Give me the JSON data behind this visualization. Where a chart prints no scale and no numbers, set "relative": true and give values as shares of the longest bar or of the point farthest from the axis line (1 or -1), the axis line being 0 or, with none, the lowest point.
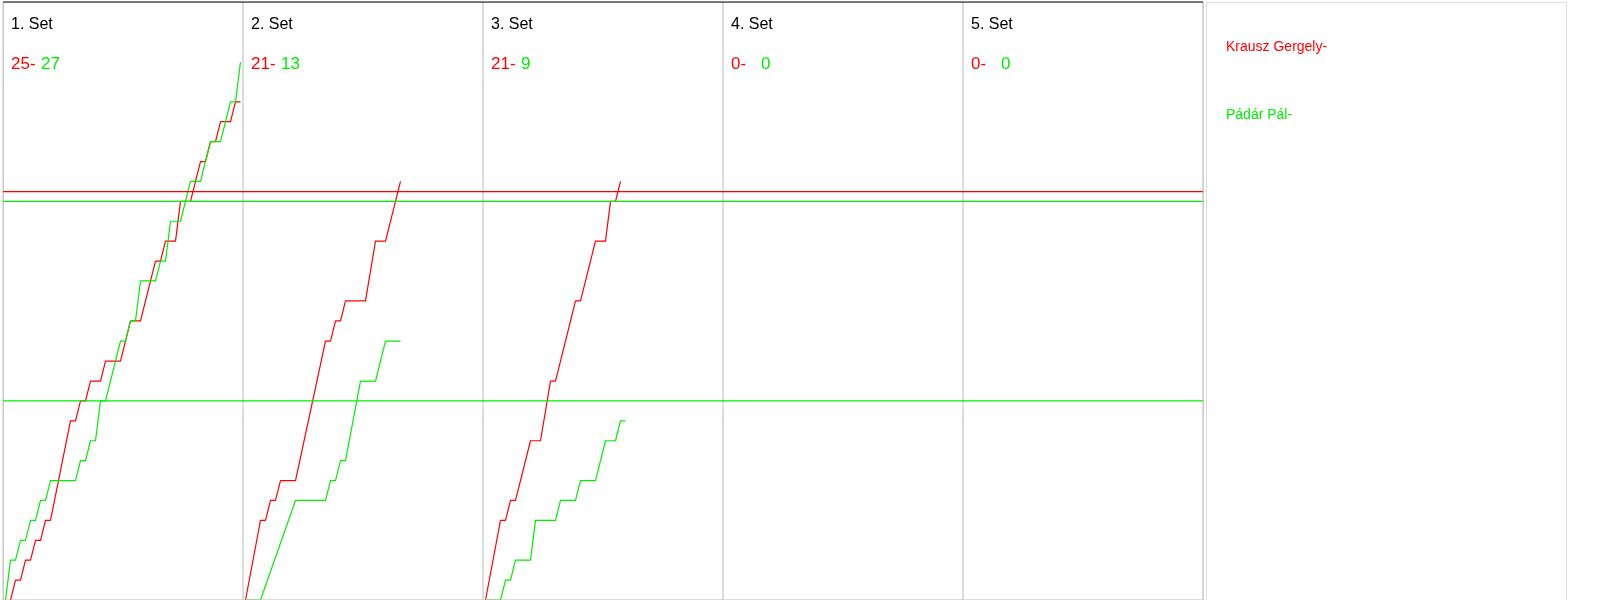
{
  "chart_data": {
    "type": "line",
    "relative": true,
    "annotations": [
      "1. Set",
      "25-",
      "27",
      "2. Set",
      "21-",
      "13",
      "3. Set",
      "21-",
      "9",
      "4. Set",
      "0-",
      "0",
      "5. Set",
      "0-",
      "0"
    ],
    "categories": [
      null,
      null,
      null,
      null,
      null,
      null,
      null,
      null,
      null,
      null,
      null,
      null,
      null,
      null,
      null,
      null,
      null,
      null,
      null,
      null,
      null,
      null,
      null,
      null,
      null,
      null,
      null,
      null,
      null,
      null,
      null,
      null,
      null,
      null,
      null,
      null,
      null,
      null,
      null,
      null,
      null,
      null,
      null,
      null,
      null,
      null,
      null,
      null,
      null,
      null,
      null,
      null,
      null,
      null,
      null,
      null,
      null,
      null,
      null,
      null,
      null,
      null,
      null,
      null,
      null,
      null,
      null,
      null,
      null,
      null,
      null,
      null,
      null,
      null,
      null,
      null,
      null,
      null,
      null,
      null,
      null,
      null,
      null,
      null,
      null,
      null,
      null,
      null,
      null,
      null,
      null,
      null,
      null,
      null,
      null,
      null,
      null,
      null,
      null,
      null,
      null,
      null,
      null,
      null,
      null,
      null,
      null,
      null,
      null,
      null,
      null,
      null,
      null,
      null,
      null,
      null,
      null,
      null,
      null,
      null,
      null,
      null,
      null,
      null,
      null,
      null,
      null,
      null,
      null,
      null,
      null,
      null,
      null,
      null,
      null,
      null,
      null,
      null,
      null,
      null,
      null,
      null,
      null,
      null,
      null,
      null,
      null,
      null,
      null,
      null,
      null,
      null,
      null,
      null,
      null,
      null,
      null,
      null,
      null,
      null,
      null,
      null,
      null,
      null,
      null,
      null,
      null,
      null,
      null,
      null,
      null,
      null,
      null,
      null,
      null,
      null,
      null,
      null,
      null,
      null,
      null,
      null,
      null,
      null,
      null,
      null,
      null,
      null,
      null,
      null,
      null,
      null,
      null,
      null,
      null,
      null,
      null,
      null,
      null,
      null,
      null,
      null,
      null,
      null,
      null,
      null,
      null,
      null,
      null,
      null,
      null,
      null,
      null,
      null,
      null,
      null,
      null,
      null,
      null,
      null,
      null,
      null,
      null,
      null,
      null,
      null,
      null,
      null,
      null,
      null,
      null,
      null,
      null,
      null,
      null,
      null,
      null,
      null,
      null,
      null
    ],
    "series": [
      {
        "name": "Krausz Gergely-",
        "color": "#ff0000",
        "values": [
          null,
          0,
          0.037,
          0.037,
          0.074,
          0.074,
          0.111,
          0.111,
          0.148,
          0.148,
          null,
          null,
          null,
          0.333,
          0.333,
          0.37,
          0.37,
          0.407,
          null,
          0.407,
          0.444,
          null,
          null,
          0.444,
          0.481,
          0.519,
          null,
          0.519,
          null,
          null,
          0.63,
          0.63,
          0.667,
          null,
          0.667,
          0.741,
          null,
          0.741,
          null,
          0.815,
          0.815,
          0.852,
          0.852,
          0.889,
          null,
          0.889,
          0.926,
          0.926,
          null,
          null,
          null,
          null,
          null,
          null,
          null,
          null,
          null,
          null,
          null,
          null,
          null,
          null,
          null,
          null,
          null,
          null,
          null,
          null,
          null,
          null,
          null,
          null,
          null,
          null,
          null,
          null,
          null,
          null,
          null,
          null,
          null,
          null,
          null,
          null,
          null,
          null,
          null,
          null,
          null,
          null,
          null,
          null,
          null,
          null,
          null,
          null,
          null,
          null,
          null,
          null,
          null,
          null,
          null,
          null,
          null,
          null,
          null,
          null,
          null,
          null,
          null,
          null,
          null,
          null,
          null,
          null,
          null,
          null,
          null,
          null,
          null,
          null,
          null,
          null,
          null,
          null,
          null,
          null,
          null,
          null,
          null,
          null,
          null,
          null,
          null,
          null,
          null,
          null,
          null,
          null,
          null,
          null,
          null,
          null,
          null,
          null,
          null,
          null,
          null,
          null,
          null,
          null,
          null,
          null,
          null,
          null,
          null,
          null,
          null,
          null,
          null,
          null,
          null,
          null,
          null,
          null,
          null,
          null,
          null,
          null,
          null,
          null,
          null,
          null,
          null,
          null,
          null,
          null,
          null,
          null,
          null,
          null,
          null,
          null,
          null,
          null,
          null,
          null,
          null,
          null,
          null,
          null,
          null,
          null,
          null,
          null,
          null,
          null,
          null,
          null,
          null,
          null,
          null,
          null,
          null,
          null,
          null,
          null,
          null,
          null,
          null,
          null,
          null,
          null,
          null,
          null,
          null,
          null,
          null,
          null,
          null,
          null,
          null,
          null,
          null,
          null,
          null,
          null,
          null,
          null,
          null,
          null,
          null,
          null,
          null,
          null,
          null,
          null,
          null,
          null
        ]
      },
      {
        "name": "Pádár Pál-",
        "color": "#00ee00",
        "values": [
          0,
          0.074,
          0.074,
          0.111,
          0.111,
          0.148,
          0.148,
          0.185,
          0.185,
          0.222,
          null,
          null,
          null,
          null,
          0.222,
          0.259,
          0.259,
          0.296,
          0.296,
          0.37,
          0.37,
          null,
          null,
          0.481,
          0.481,
          0.519,
          0.519,
          0.593,
          null,
          null,
          0.593,
          0.63,
          0.63,
          0.704,
          null,
          0.704,
          null,
          0.778,
          null,
          0.778,
          null,
          0.852,
          null,
          0.852,
          null,
          0.926,
          0.926,
          1,
          null,
          null,
          null,
          null,
          null,
          null,
          null,
          null,
          null,
          null,
          null,
          null,
          null,
          null,
          null,
          null,
          null,
          null,
          null,
          null,
          null,
          null,
          null,
          null,
          null,
          null,
          null,
          null,
          null,
          null,
          null,
          null,
          null,
          null,
          null,
          null,
          null,
          null,
          null,
          null,
          null,
          null,
          null,
          null,
          null,
          null,
          null,
          null,
          null,
          null,
          null,
          null,
          null,
          null,
          null,
          null,
          null,
          null,
          null,
          null,
          null,
          null,
          null,
          null,
          null,
          null,
          null,
          null,
          null,
          null,
          null,
          null,
          null,
          null,
          null,
          null,
          null,
          null,
          null,
          null,
          null,
          null,
          null,
          null,
          null,
          null,
          null,
          null,
          null,
          null,
          null,
          null,
          null,
          null,
          null,
          null,
          null,
          null,
          null,
          null,
          null,
          null,
          null,
          null,
          null,
          null,
          null,
          null,
          null,
          null,
          null,
          null,
          null,
          null,
          null,
          null,
          null,
          null,
          null,
          null,
          null,
          null,
          null,
          null,
          null,
          null,
          null,
          null,
          null,
          null,
          null,
          null,
          null,
          null,
          null,
          null,
          null,
          null,
          null,
          null,
          null,
          null,
          null,
          null,
          null,
          null,
          null,
          null,
          null,
          null,
          null,
          null,
          null,
          null,
          null,
          null,
          null,
          null,
          null,
          null,
          null,
          null,
          null,
          null,
          null,
          null,
          null,
          null,
          null,
          null,
          null,
          null,
          null,
          null,
          null,
          null,
          null,
          null,
          null,
          null,
          null,
          null,
          null,
          null,
          null,
          null,
          null,
          null,
          null,
          null,
          null,
          null
        ]
      },
      {
        "color": "#ff0000",
        "values": [
          null,
          null,
          null,
          null,
          null,
          null,
          null,
          null,
          null,
          null,
          null,
          null,
          null,
          null,
          null,
          null,
          null,
          null,
          null,
          null,
          null,
          null,
          null,
          null,
          null,
          null,
          null,
          null,
          null,
          null,
          null,
          null,
          null,
          null,
          null,
          null,
          null,
          null,
          null,
          null,
          null,
          null,
          null,
          null,
          null,
          null,
          null,
          null,
          0,
          null,
          null,
          0.148,
          0.148,
          0.185,
          0.185,
          0.222,
          null,
          null,
          0.222,
          null,
          null,
          null,
          null,
          null,
          0.481,
          0.481,
          0.519,
          0.519,
          0.556,
          null,
          null,
          null,
          0.556,
          null,
          0.667,
          null,
          0.667,
          null,
          null,
          0.778,
          null,
          null,
          null,
          null,
          null,
          null,
          null,
          null,
          null,
          null,
          null,
          null,
          null,
          null,
          null,
          null,
          null,
          null,
          null,
          null,
          null,
          null,
          null,
          null,
          null,
          null,
          null,
          null,
          null,
          null,
          null,
          null,
          null,
          null,
          null,
          null,
          null,
          null,
          null,
          null,
          null,
          null,
          null,
          null,
          null,
          null,
          null,
          null,
          null,
          null,
          null,
          null,
          null,
          null,
          null,
          null,
          null,
          null,
          null,
          null,
          null,
          null,
          null,
          null,
          null,
          null,
          null,
          null,
          null,
          null,
          null,
          null,
          null,
          null,
          null,
          null,
          null,
          null,
          null,
          null,
          null,
          null,
          null,
          null,
          null,
          null,
          null,
          null,
          null,
          null,
          null,
          null,
          null,
          null,
          null,
          null,
          null,
          null,
          null,
          null,
          null,
          null,
          null,
          null,
          null,
          null,
          null,
          null,
          null,
          null,
          null,
          null,
          null,
          null,
          null,
          null,
          null,
          null,
          null,
          null,
          null,
          null,
          null,
          null,
          null,
          null,
          null,
          null,
          null,
          null,
          null,
          null,
          null,
          null,
          null,
          null,
          null,
          null,
          null,
          null,
          null,
          null,
          null,
          null,
          null,
          null,
          null,
          null,
          null,
          null,
          null,
          null,
          null,
          null,
          null,
          null,
          null,
          null,
          null,
          null
        ]
      },
      {
        "color": "#00ee00",
        "values": [
          null,
          null,
          null,
          null,
          null,
          null,
          null,
          null,
          null,
          null,
          null,
          null,
          null,
          null,
          null,
          null,
          null,
          null,
          null,
          null,
          null,
          null,
          null,
          null,
          null,
          null,
          null,
          null,
          null,
          null,
          null,
          null,
          null,
          null,
          null,
          null,
          null,
          null,
          null,
          null,
          null,
          null,
          null,
          null,
          null,
          null,
          null,
          null,
          0,
          null,
          null,
          0,
          null,
          null,
          null,
          null,
          null,
          null,
          0.185,
          null,
          null,
          null,
          null,
          null,
          0.185,
          0.222,
          0.222,
          0.259,
          0.259,
          null,
          null,
          0.407,
          null,
          null,
          0.407,
          null,
          0.481,
          null,
          null,
          0.481,
          null,
          null,
          null,
          null,
          null,
          null,
          null,
          null,
          null,
          null,
          null,
          null,
          null,
          null,
          null,
          null,
          null,
          null,
          null,
          null,
          null,
          null,
          null,
          null,
          null,
          null,
          null,
          null,
          null,
          null,
          null,
          null,
          null,
          null,
          null,
          null,
          null,
          null,
          null,
          null,
          null,
          null,
          null,
          null,
          null,
          null,
          null,
          null,
          null,
          null,
          null,
          null,
          null,
          null,
          null,
          null,
          null,
          null,
          null,
          null,
          null,
          null,
          null,
          null,
          null,
          null,
          null,
          null,
          null,
          null,
          null,
          null,
          null,
          null,
          null,
          null,
          null,
          null,
          null,
          null,
          null,
          null,
          null,
          null,
          null,
          null,
          null,
          null,
          null,
          null,
          null,
          null,
          null,
          null,
          null,
          null,
          null,
          null,
          null,
          null,
          null,
          null,
          null,
          null,
          null,
          null,
          null,
          null,
          null,
          null,
          null,
          null,
          null,
          null,
          null,
          null,
          null,
          null,
          null,
          null,
          null,
          null,
          null,
          null,
          null,
          null,
          null,
          null,
          null,
          null,
          null,
          null,
          null,
          null,
          null,
          null,
          null,
          null,
          null,
          null,
          null,
          null,
          null,
          null,
          null,
          null,
          null,
          null,
          null,
          null,
          null,
          null,
          null,
          null,
          null,
          null,
          null,
          null,
          null,
          null
        ]
      },
      {
        "color": "#ff0000",
        "values": [
          null,
          null,
          null,
          null,
          null,
          null,
          null,
          null,
          null,
          null,
          null,
          null,
          null,
          null,
          null,
          null,
          null,
          null,
          null,
          null,
          null,
          null,
          null,
          null,
          null,
          null,
          null,
          null,
          null,
          null,
          null,
          null,
          null,
          null,
          null,
          null,
          null,
          null,
          null,
          null,
          null,
          null,
          null,
          null,
          null,
          null,
          null,
          null,
          null,
          null,
          null,
          null,
          null,
          null,
          null,
          null,
          null,
          null,
          null,
          null,
          null,
          null,
          null,
          null,
          null,
          null,
          null,
          null,
          null,
          null,
          null,
          null,
          null,
          null,
          null,
          null,
          null,
          null,
          null,
          null,
          null,
          null,
          null,
          null,
          null,
          null,
          null,
          null,
          null,
          null,
          null,
          null,
          null,
          null,
          null,
          null,
          0,
          null,
          null,
          0.148,
          0.148,
          0.185,
          0.185,
          null,
          null,
          0.296,
          null,
          0.296,
          null,
          0.407,
          0.407,
          null,
          null,
          null,
          0.556,
          0.556,
          null,
          null,
          0.667,
          null,
          0.667,
          0.741,
          0.741,
          0.778,
          null,
          null,
          null,
          null,
          null,
          null,
          null,
          null,
          null,
          null,
          null,
          null,
          null,
          null,
          null,
          null,
          null,
          null,
          null,
          null,
          null,
          null,
          null,
          null,
          null,
          null,
          null,
          null,
          null,
          null,
          null,
          null,
          null,
          null,
          null,
          null,
          null,
          null,
          null,
          null,
          null,
          null,
          null,
          null,
          null,
          null,
          null,
          null,
          null,
          null,
          null,
          null,
          null,
          null,
          null,
          null,
          null,
          null,
          null,
          null,
          null,
          null,
          null,
          null,
          null,
          null,
          null,
          null,
          null,
          null,
          null,
          null,
          null,
          null,
          null,
          null,
          null,
          null,
          null,
          null,
          null,
          null,
          null,
          null,
          null,
          null,
          null,
          null,
          null,
          null,
          null,
          null,
          null,
          null,
          null,
          null,
          null,
          null,
          null,
          null,
          null,
          null,
          null,
          null,
          null,
          null,
          null,
          null,
          null,
          null,
          null,
          null,
          null,
          null,
          null,
          null
        ]
      },
      {
        "color": "#00ee00",
        "values": [
          null,
          null,
          null,
          null,
          null,
          null,
          null,
          null,
          null,
          null,
          null,
          null,
          null,
          null,
          null,
          null,
          null,
          null,
          null,
          null,
          null,
          null,
          null,
          null,
          null,
          null,
          null,
          null,
          null,
          null,
          null,
          null,
          null,
          null,
          null,
          null,
          null,
          null,
          null,
          null,
          null,
          null,
          null,
          null,
          null,
          null,
          null,
          null,
          null,
          null,
          null,
          null,
          null,
          null,
          null,
          null,
          null,
          null,
          null,
          null,
          null,
          null,
          null,
          null,
          null,
          null,
          null,
          null,
          null,
          null,
          null,
          null,
          null,
          null,
          null,
          null,
          null,
          null,
          null,
          null,
          null,
          null,
          null,
          null,
          null,
          null,
          null,
          null,
          null,
          null,
          null,
          null,
          null,
          null,
          null,
          null,
          0,
          null,
          null,
          0,
          0.037,
          0.037,
          0.074,
          null,
          null,
          0.074,
          0.148,
          null,
          null,
          null,
          0.148,
          0.185,
          null,
          null,
          0.185,
          0.222,
          null,
          null,
          0.222,
          null,
          0.296,
          null,
          0.296,
          0.333,
          0.333,
          null,
          null,
          null,
          null,
          null,
          null,
          null,
          null,
          null,
          null,
          null,
          null,
          null,
          null,
          null,
          null,
          null,
          null,
          null,
          null,
          null,
          null,
          null,
          null,
          null,
          null,
          null,
          null,
          null,
          null,
          null,
          null,
          null,
          null,
          null,
          null,
          null,
          null,
          null,
          null,
          null,
          null,
          null,
          null,
          null,
          null,
          null,
          null,
          null,
          null,
          null,
          null,
          null,
          null,
          null,
          null,
          null,
          null,
          null,
          null,
          null,
          null,
          null,
          null,
          null,
          null,
          null,
          null,
          null,
          null,
          null,
          null,
          null,
          null,
          null,
          null,
          null,
          null,
          null,
          null,
          null,
          null,
          null,
          null,
          null,
          null,
          null,
          null,
          null,
          null,
          null,
          null,
          null,
          null,
          null,
          null,
          null,
          null,
          null,
          null,
          null,
          null,
          null,
          null,
          null,
          null,
          null,
          null,
          null,
          null,
          null,
          null,
          null,
          null,
          null
        ]
      }
    ],
    "tick_labels": false,
    "ref_lines": [
      {
        "axis": "y",
        "value": 0.759,
        "color": "#ff0000"
      },
      {
        "axis": "y",
        "value": 0.741,
        "color": "#00ee00"
      },
      {
        "axis": "y",
        "value": 0.37,
        "color": "#00ee00"
      }
    ]
  }
}
